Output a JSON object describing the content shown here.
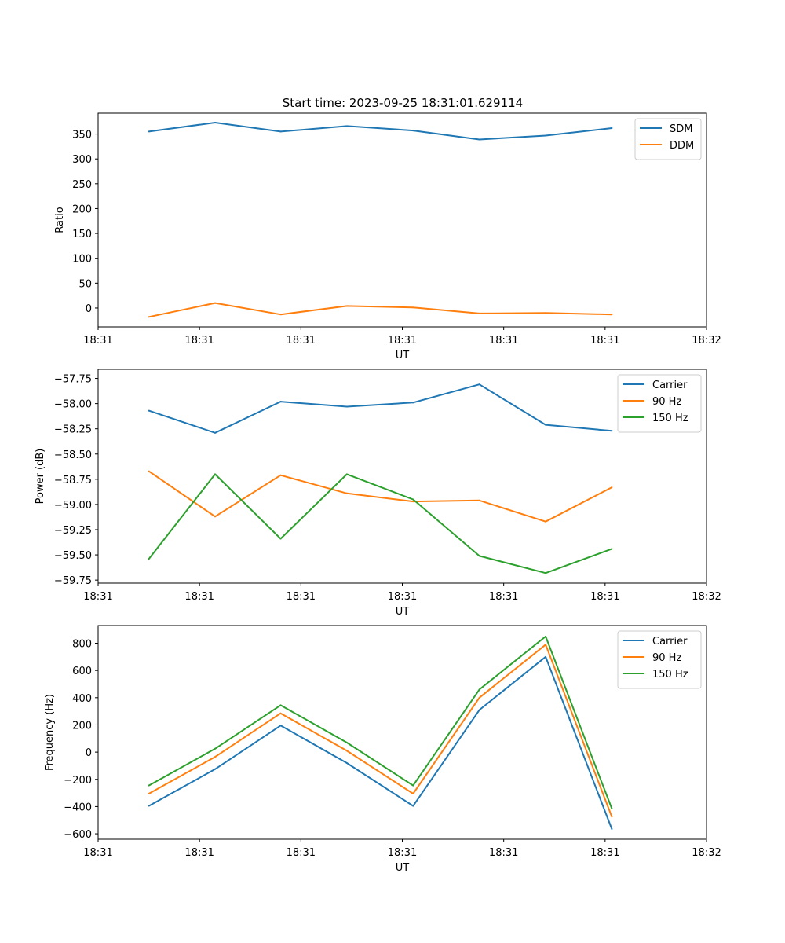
{
  "figure_title": "Start time: 2023-09-25 18:31:01.629114",
  "colors": {
    "blue": "#1f77b4",
    "orange": "#ff7f0e",
    "green": "#2ca02c"
  },
  "chart_data": [
    {
      "type": "line",
      "title": "Start time: 2023-09-25 18:31:01.629114",
      "xlabel": "UT",
      "ylabel": "Ratio",
      "xlim": [
        0,
        9
      ],
      "ylim": [
        -38,
        392
      ],
      "xticks": [
        0,
        1.5,
        3,
        4.5,
        6,
        7.5,
        9
      ],
      "xtick_labels": [
        "18:31",
        "18:31",
        "18:31",
        "18:31",
        "18:31",
        "18:31",
        "18:32"
      ],
      "yticks": [
        0,
        50,
        100,
        150,
        200,
        250,
        300,
        350
      ],
      "ytick_labels": [
        "0",
        "50",
        "100",
        "150",
        "200",
        "250",
        "300",
        "350"
      ],
      "legend_position": "top-right",
      "x": [
        0.75,
        1.73,
        2.7,
        3.68,
        4.66,
        5.64,
        6.62,
        7.6
      ],
      "series": [
        {
          "name": "SDM",
          "color": "#1f77b4",
          "values": [
            355,
            373,
            355,
            366,
            357,
            339,
            347,
            362
          ]
        },
        {
          "name": "DDM",
          "color": "#ff7f0e",
          "values": [
            -18,
            10,
            -13,
            4,
            1,
            -11,
            -10,
            -13
          ]
        }
      ]
    },
    {
      "type": "line",
      "title": "",
      "xlabel": "UT",
      "ylabel": "Power (dB)",
      "xlim": [
        0,
        9
      ],
      "ylim": [
        -59.78,
        -57.66
      ],
      "xticks": [
        0,
        1.5,
        3,
        4.5,
        6,
        7.5,
        9
      ],
      "xtick_labels": [
        "18:31",
        "18:31",
        "18:31",
        "18:31",
        "18:31",
        "18:31",
        "18:32"
      ],
      "yticks": [
        -59.75,
        -59.5,
        -59.25,
        -59.0,
        -58.75,
        -58.5,
        -58.25,
        -58.0,
        -57.75
      ],
      "ytick_labels": [
        "−59.75",
        "−59.50",
        "−59.25",
        "−59.00",
        "−58.75",
        "−58.50",
        "−58.25",
        "−58.00",
        "−57.75"
      ],
      "legend_position": "top-right",
      "x": [
        0.75,
        1.73,
        2.7,
        3.68,
        4.66,
        5.64,
        6.62,
        7.6
      ],
      "series": [
        {
          "name": "Carrier",
          "color": "#1f77b4",
          "values": [
            -58.07,
            -58.29,
            -57.98,
            -58.03,
            -57.99,
            -57.81,
            -58.21,
            -58.27
          ]
        },
        {
          "name": "90 Hz",
          "color": "#ff7f0e",
          "values": [
            -58.67,
            -59.12,
            -58.71,
            -58.89,
            -58.97,
            -58.96,
            -59.17,
            -58.83
          ]
        },
        {
          "name": "150 Hz",
          "color": "#2ca02c",
          "values": [
            -59.54,
            -58.7,
            -59.34,
            -58.7,
            -58.95,
            -59.51,
            -59.68,
            -59.44
          ]
        }
      ]
    },
    {
      "type": "line",
      "title": "",
      "xlabel": "UT",
      "ylabel": "Frequency (Hz)",
      "xlim": [
        0,
        9
      ],
      "ylim": [
        -640,
        930
      ],
      "xticks": [
        0,
        1.5,
        3,
        4.5,
        6,
        7.5,
        9
      ],
      "xtick_labels": [
        "18:31",
        "18:31",
        "18:31",
        "18:31",
        "18:31",
        "18:31",
        "18:32"
      ],
      "yticks": [
        -600,
        -400,
        -200,
        0,
        200,
        400,
        600,
        800
      ],
      "ytick_labels": [
        "−600",
        "−400",
        "−200",
        "0",
        "200",
        "400",
        "600",
        "800"
      ],
      "legend_position": "top-right",
      "x": [
        0.75,
        1.73,
        2.7,
        3.68,
        4.66,
        5.64,
        6.62,
        7.6
      ],
      "series": [
        {
          "name": "Carrier",
          "color": "#1f77b4",
          "values": [
            -395,
            -125,
            195,
            -80,
            -395,
            310,
            700,
            -565
          ]
        },
        {
          "name": "90 Hz",
          "color": "#ff7f0e",
          "values": [
            -305,
            -35,
            285,
            10,
            -305,
            400,
            790,
            -475
          ]
        },
        {
          "name": "150 Hz",
          "color": "#2ca02c",
          "values": [
            -245,
            25,
            345,
            70,
            -245,
            460,
            850,
            -415
          ]
        }
      ]
    }
  ]
}
